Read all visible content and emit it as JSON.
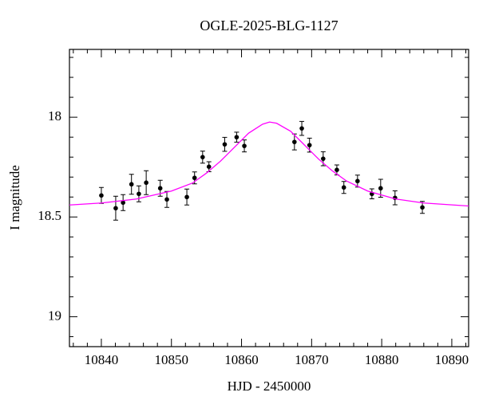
{
  "chart_data": {
    "type": "scatter",
    "title": "OGLE-2025-BLG-1127",
    "x_label": "HJD - 2450000",
    "y_label": "I magnitude",
    "xlim": [
      10835.45,
      10892.4
    ],
    "ylim": [
      17.66,
      19.15
    ],
    "y_inverted": true,
    "xticks": [
      10840,
      10850,
      10860,
      10870,
      10880,
      10890
    ],
    "xminorticks": [
      10836,
      10838,
      10842,
      10844,
      10846,
      10848,
      10852,
      10854,
      10856,
      10858,
      10862,
      10864,
      10866,
      10868,
      10872,
      10874,
      10876,
      10878,
      10882,
      10884,
      10886,
      10888,
      10892
    ],
    "yticks": [
      18,
      18.5,
      19
    ],
    "yminorticks": [
      17.7,
      17.8,
      17.9,
      18.1,
      18.2,
      18.3,
      18.4,
      18.6,
      18.7,
      18.8,
      18.9,
      19.1
    ],
    "series": [
      {
        "type": "scatter",
        "color": "#000000",
        "x": [
          10840,
          10842.05,
          10843.1,
          10844.3,
          10845.35,
          10846.4,
          10848.4,
          10849.35,
          10852.2,
          10853.3,
          10854.45,
          10855.35,
          10857.6,
          10859.3,
          10860.4,
          10867.55,
          10868.6,
          10869.7,
          10871.65,
          10873.6,
          10874.6,
          10876.55,
          10878.6,
          10879.85,
          10881.9,
          10885.8
        ],
        "values": [
          18.392,
          18.456,
          18.428,
          18.336,
          18.384,
          18.328,
          18.356,
          18.412,
          18.4,
          18.304,
          18.2,
          18.248,
          18.136,
          18.1,
          18.144,
          18.124,
          18.056,
          18.14,
          18.208,
          18.264,
          18.352,
          18.32,
          18.384,
          18.356,
          18.404,
          18.452
        ],
        "errors": [
          0.04,
          0.06,
          0.04,
          0.05,
          0.04,
          0.06,
          0.04,
          0.04,
          0.04,
          0.03,
          0.03,
          0.025,
          0.035,
          0.025,
          0.03,
          0.04,
          0.035,
          0.035,
          0.035,
          0.025,
          0.03,
          0.03,
          0.025,
          0.045,
          0.035,
          0.03
        ]
      },
      {
        "type": "line",
        "color": "#ff00ff",
        "x": [
          10835.45,
          10840,
          10845,
          10850,
          10853,
          10855,
          10857,
          10859,
          10861,
          10863,
          10864,
          10865,
          10867,
          10869,
          10871,
          10873,
          10875,
          10878,
          10882,
          10886,
          10892.4
        ],
        "values": [
          18.44,
          18.43,
          18.41,
          18.37,
          18.33,
          18.28,
          18.22,
          18.15,
          18.08,
          18.035,
          18.024,
          18.03,
          18.07,
          18.14,
          18.21,
          18.27,
          18.32,
          18.37,
          18.41,
          18.43,
          18.445
        ]
      }
    ]
  }
}
